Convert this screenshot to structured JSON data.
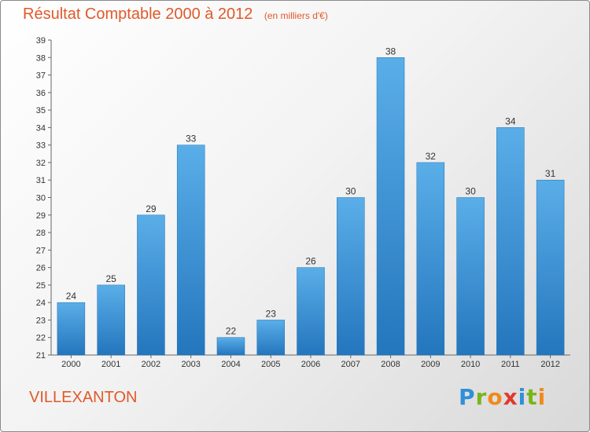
{
  "title": "Résultat Comptable 2000 à 2012",
  "subtitle": "(en milliers d'€)",
  "town": "VILLEXANTON",
  "logo": "Proxiti",
  "colors": {
    "title": "#e0592a",
    "bar": "#3d97dc",
    "bar_dark": "#1f6fb3"
  },
  "chart_data": {
    "type": "bar",
    "categories": [
      "2000",
      "2001",
      "2002",
      "2003",
      "2004",
      "2005",
      "2006",
      "2007",
      "2008",
      "2009",
      "2010",
      "2011",
      "2012"
    ],
    "values": [
      24,
      25,
      29,
      33,
      22,
      23,
      26,
      30,
      38,
      32,
      30,
      34,
      31
    ],
    "ylim": [
      21,
      39
    ],
    "yticks": [
      21,
      22,
      23,
      24,
      25,
      26,
      27,
      28,
      29,
      30,
      31,
      32,
      33,
      34,
      35,
      36,
      37,
      38,
      39
    ],
    "grid": false,
    "data_labels": true
  }
}
